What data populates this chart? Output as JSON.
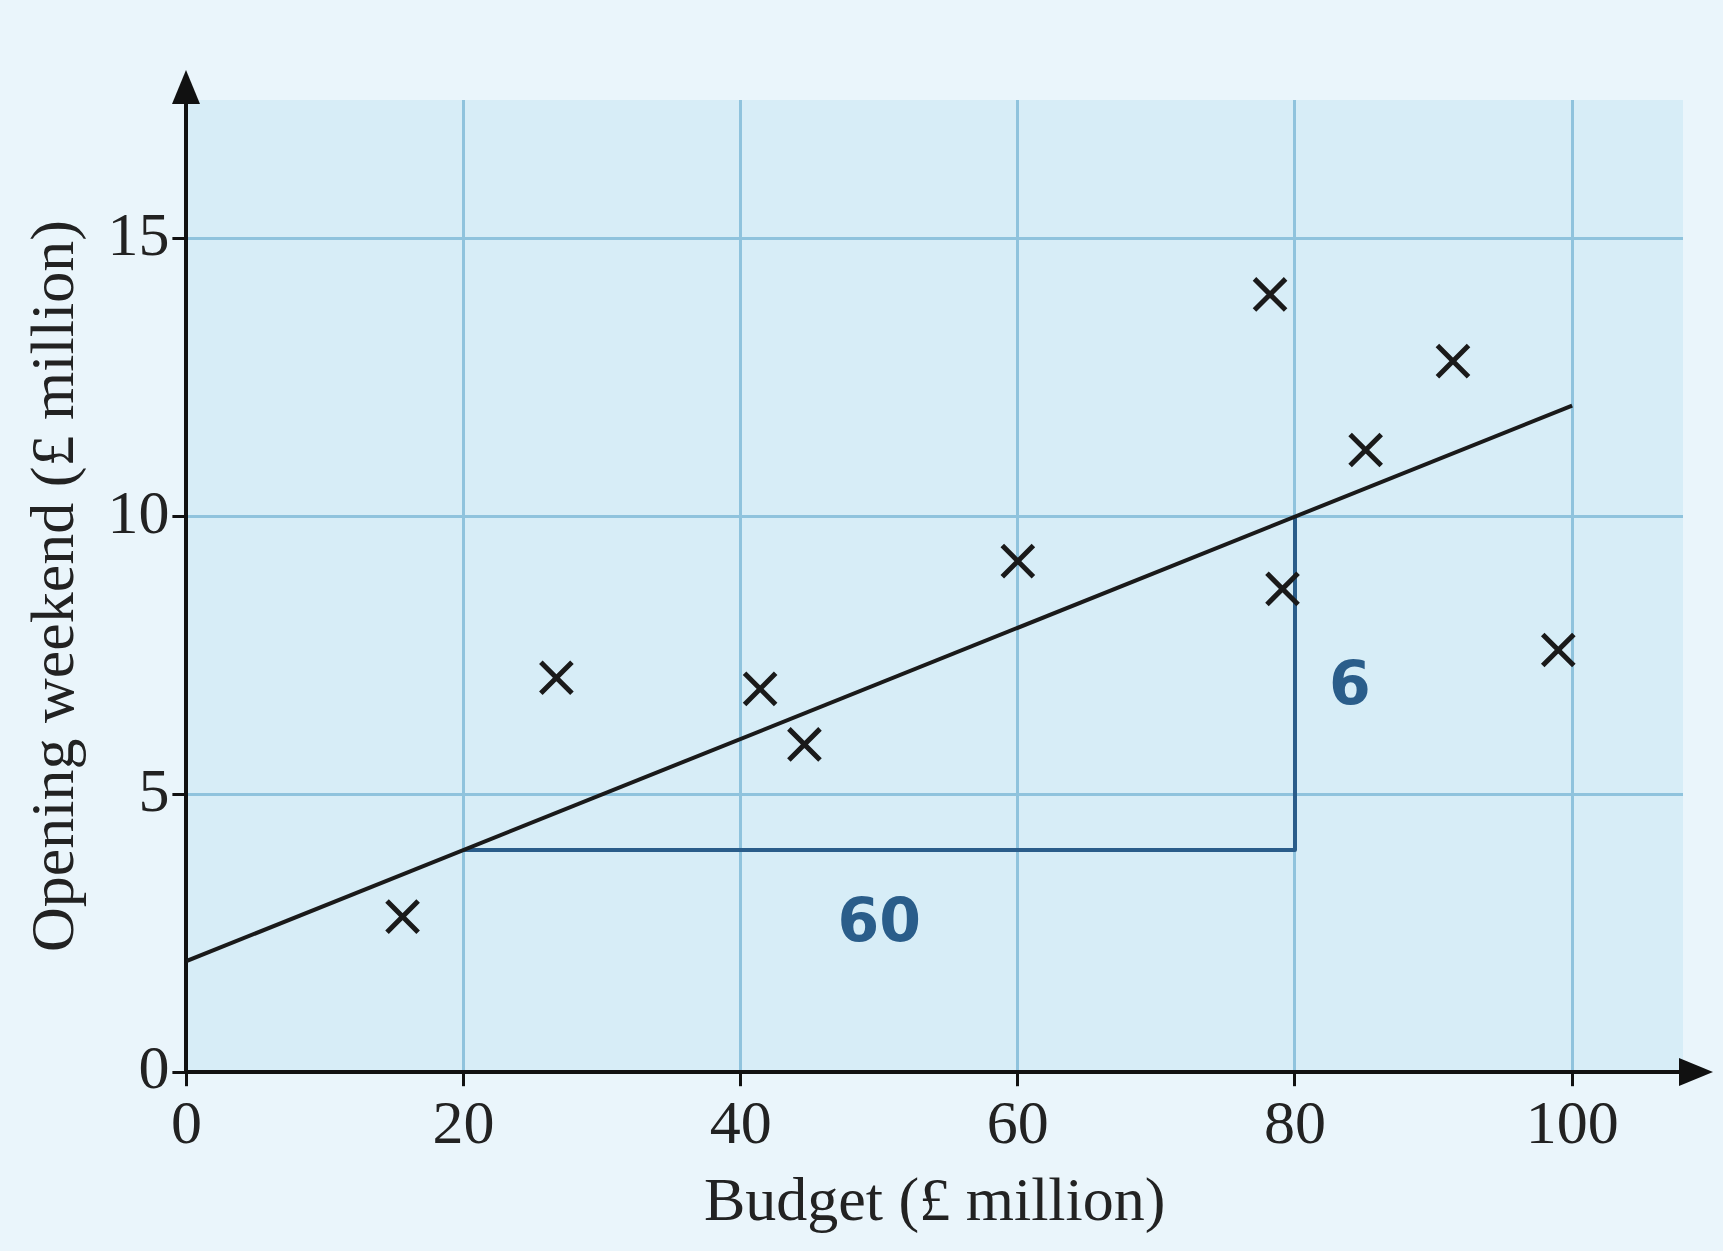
{
  "chart_data": {
    "type": "scatter",
    "xlabel": "Budget (£ million)",
    "ylabel": "Opening weekend (£ million)",
    "x": [
      15.6,
      26.7,
      41.4,
      44.6,
      60,
      78.2,
      79.1,
      85.1,
      91.4,
      99
    ],
    "series": [
      {
        "color": "#1a1a1a",
        "marker": "cross",
        "values": [
          2.8,
          7.1,
          6.9,
          5.9,
          9.2,
          14.0,
          8.7,
          11.2,
          12.8,
          7.6
        ]
      },
      {
        "type": "line",
        "color": "#1a1a1a",
        "marker": "none",
        "x": [
          0,
          100
        ],
        "values": [
          2,
          12
        ]
      },
      {
        "type": "line",
        "color": "#2a5d8a",
        "marker": "none",
        "x": [
          20,
          80,
          80
        ],
        "values": [
          4,
          4,
          10
        ]
      }
    ],
    "annotations": [
      "60",
      "6"
    ],
    "xlim": [
      0,
      108
    ],
    "ylim": [
      0,
      17.5
    ],
    "xticks": [
      0,
      20,
      40,
      60,
      80,
      100
    ],
    "yticks": [
      0,
      5,
      10,
      15
    ],
    "grid": true,
    "legend": false
  }
}
